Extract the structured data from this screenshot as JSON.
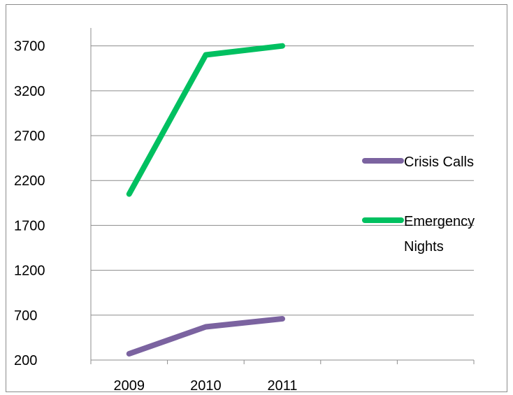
{
  "chart_data": {
    "type": "line",
    "categories": [
      "2009",
      "2010",
      "2011"
    ],
    "y_ticks": [
      "200",
      "700",
      "1200",
      "1700",
      "2200",
      "2700",
      "3200",
      "3700"
    ],
    "ylim": [
      200,
      3900
    ],
    "grid": true,
    "legend_position": "right",
    "series": [
      {
        "name": "Crisis Calls",
        "legend_lines": [
          "Crisis Calls"
        ],
        "values": [
          270,
          570,
          660
        ],
        "color": "#7b63a0"
      },
      {
        "name": "Emergency Nights",
        "legend_lines": [
          "Emergency",
          "Nights"
        ],
        "values": [
          2050,
          3600,
          3700
        ],
        "color": "#00c060"
      }
    ]
  }
}
